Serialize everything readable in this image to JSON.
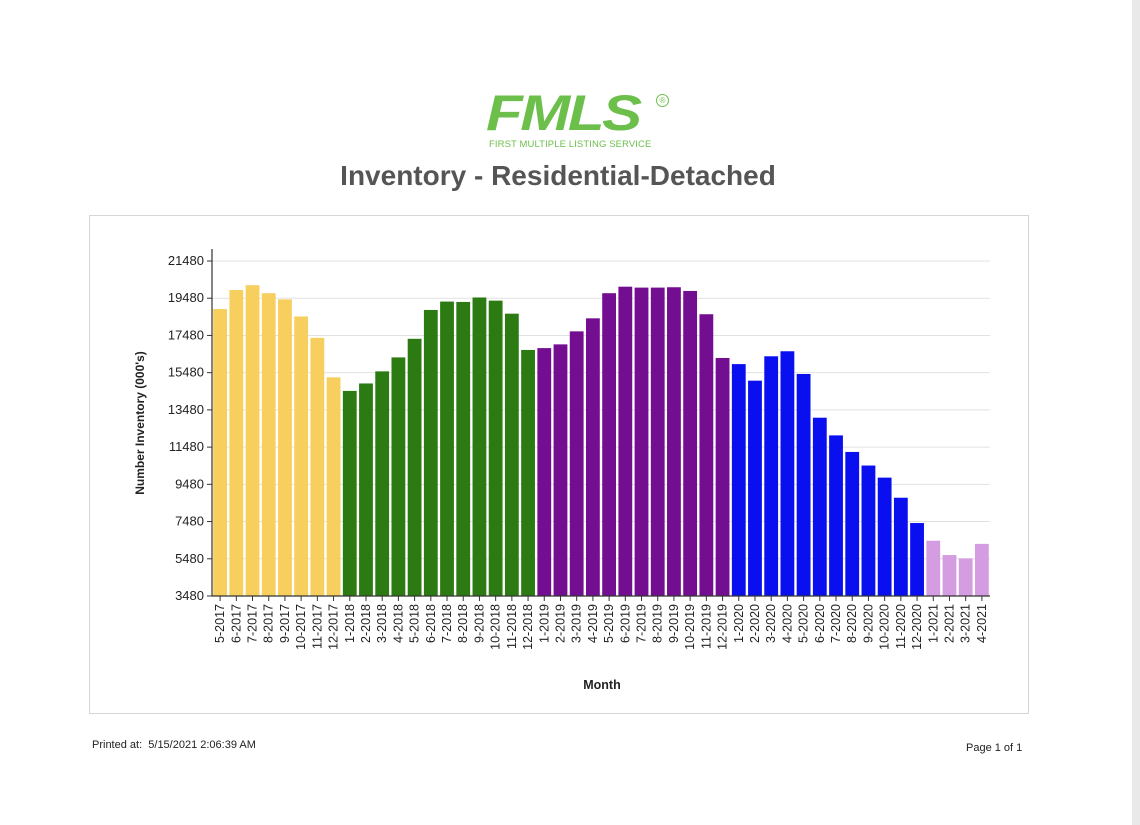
{
  "logo": {
    "text": "FMLS",
    "registered": "®",
    "tagline": "FIRST MULTIPLE LISTING SERVICE",
    "color": "#6cbf4b"
  },
  "title": "Inventory - Residential-Detached",
  "footer": {
    "printed_label": "Printed at:",
    "printed_value": "5/15/2021 2:06:39 AM",
    "page": "Page 1 of 1"
  },
  "chart_data": {
    "type": "bar",
    "xlabel": "Month",
    "ylabel": "Number Inventory (000's)",
    "ylim": [
      3480,
      21480
    ],
    "yticks": [
      3480,
      5480,
      7480,
      9480,
      11480,
      13480,
      15480,
      17480,
      19480,
      21480
    ],
    "grid": true,
    "categories": [
      "5-2017",
      "6-2017",
      "7-2017",
      "8-2017",
      "9-2017",
      "10-2017",
      "11-2017",
      "12-2017",
      "1-2018",
      "2-2018",
      "3-2018",
      "4-2018",
      "5-2018",
      "6-2018",
      "7-2018",
      "8-2018",
      "9-2018",
      "10-2018",
      "11-2018",
      "12-2018",
      "1-2019",
      "2-2019",
      "3-2019",
      "4-2019",
      "5-2019",
      "6-2019",
      "7-2019",
      "8-2019",
      "9-2019",
      "10-2019",
      "11-2019",
      "12-2019",
      "1-2020",
      "2-2020",
      "3-2020",
      "4-2020",
      "5-2020",
      "6-2020",
      "7-2020",
      "8-2020",
      "9-2020",
      "10-2020",
      "11-2020",
      "12-2020",
      "1-2021",
      "2-2021",
      "3-2021",
      "4-2021"
    ],
    "values": [
      18900,
      19920,
      20180,
      19750,
      19420,
      18500,
      17350,
      15230,
      14500,
      14900,
      15550,
      16300,
      17300,
      18850,
      19300,
      19280,
      19520,
      19350,
      18650,
      16700,
      16800,
      17000,
      17700,
      18400,
      19750,
      20100,
      20050,
      20050,
      20070,
      19870,
      18620,
      16270,
      15940,
      15050,
      16360,
      16630,
      15410,
      13060,
      12110,
      11220,
      10490,
      9840,
      8760,
      7400,
      6450,
      5680,
      5500,
      6280
    ],
    "series_colors": {
      "2017": "#f7cf5e",
      "2018": "#2c7a12",
      "2019": "#730e91",
      "2020": "#0a0fef",
      "2021": "#d49de2"
    }
  }
}
